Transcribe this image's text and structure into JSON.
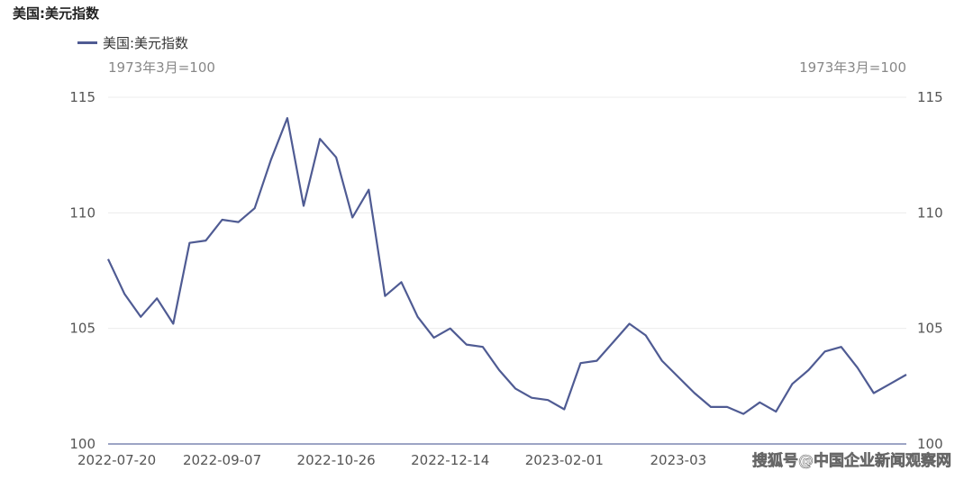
{
  "title": "美国:美元指数",
  "legend": {
    "label": "美国:美元指数",
    "color": "#4f5b93"
  },
  "units": {
    "left": "1973年3月=100",
    "right": "1973年3月=100"
  },
  "watermark": "搜狐号@中国企业新闻观察网",
  "chart_data": {
    "type": "line",
    "title": "美国:美元指数",
    "ylabel": "1973年3月=100",
    "ylim": [
      100,
      115
    ],
    "y_ticks": [
      100,
      105,
      110,
      115
    ],
    "x_tick_labels": [
      "2022-07-20",
      "2022-09-07",
      "2022-10-26",
      "2022-12-14",
      "2023-02-01",
      "2023-03"
    ],
    "grid": true,
    "legend_position": "top-left",
    "series": [
      {
        "name": "美国:美元指数",
        "color": "#4f5b93",
        "x": [
          "2022-07-20",
          "2022-07-27",
          "2022-08-03",
          "2022-08-10",
          "2022-08-17",
          "2022-08-24",
          "2022-08-31",
          "2022-09-07",
          "2022-09-14",
          "2022-09-21",
          "2022-09-28",
          "2022-10-05",
          "2022-10-12",
          "2022-10-19",
          "2022-10-26",
          "2022-11-02",
          "2022-11-09",
          "2022-11-16",
          "2022-11-23",
          "2022-11-30",
          "2022-12-07",
          "2022-12-14",
          "2022-12-21",
          "2022-12-28",
          "2023-01-04",
          "2023-01-11",
          "2023-01-18",
          "2023-01-25",
          "2023-02-01",
          "2023-02-08",
          "2023-02-15",
          "2023-02-22",
          "2023-03-01",
          "2023-03-08",
          "2023-03-15",
          "2023-03-22",
          "2023-03-29",
          "2023-04-05",
          "2023-04-12",
          "2023-04-19",
          "2023-04-26",
          "2023-05-03",
          "2023-05-10",
          "2023-05-17",
          "2023-05-24",
          "2023-05-31",
          "2023-06-07",
          "2023-06-14",
          "2023-06-21",
          "2023-06-28"
        ],
        "values": [
          108.0,
          106.5,
          105.5,
          106.3,
          105.2,
          108.7,
          108.8,
          109.7,
          109.6,
          110.2,
          112.3,
          114.1,
          110.3,
          113.2,
          112.4,
          109.8,
          111.0,
          106.4,
          107.0,
          105.5,
          104.6,
          105.0,
          104.3,
          104.2,
          103.2,
          102.4,
          102.0,
          101.9,
          101.5,
          103.5,
          103.6,
          104.4,
          105.2,
          104.7,
          103.6,
          102.9,
          102.2,
          101.6,
          101.6,
          101.3,
          101.8,
          101.4,
          102.6,
          103.2,
          104.0,
          104.2,
          103.3,
          102.2,
          102.6,
          103.0
        ]
      }
    ]
  }
}
